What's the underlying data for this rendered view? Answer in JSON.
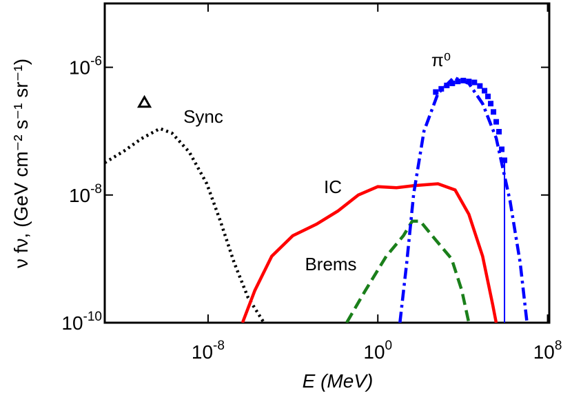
{
  "chart_data": {
    "type": "line",
    "x_label": "E (MeV)",
    "y_label": "ν fν, (GeV cm⁻² s⁻¹ sr⁻¹)",
    "xscale": "log",
    "yscale": "log",
    "xlim": [
      1.35e-13,
      120000000.0
    ],
    "ylim": [
      1e-10,
      1e-05
    ],
    "xticks": [
      {
        "value": 1e-08,
        "label": "10^-8"
      },
      {
        "value": 1,
        "label": "10^0"
      },
      {
        "value": 100000000.0,
        "label": "10^8"
      }
    ],
    "yticks": [
      {
        "value": 1e-10,
        "label": "10^-10"
      },
      {
        "value": 1e-08,
        "label": "10^-8"
      },
      {
        "value": 1e-06,
        "label": "10^-6"
      }
    ],
    "series": [
      {
        "name": "Sync",
        "color": "#000000",
        "style": "dotted",
        "x": [
          1.35e-13,
          1.1e-12,
          7.1e-12,
          5.4e-11,
          2e-10,
          1.3e-09,
          8.7e-09,
          3.8e-08,
          1.7e-07,
          7.6e-07,
          4.3e-06
        ],
        "values": [
          3.2e-08,
          4.9e-08,
          7.6e-08,
          1.1e-07,
          9.3e-08,
          4.7e-08,
          1.5e-08,
          3.9e-09,
          8.7e-10,
          2.5e-10,
          1e-10
        ]
      },
      {
        "name": "IC",
        "color": "#ff0000",
        "style": "solid",
        "x": [
          4.2e-07,
          1.6e-06,
          1e-05,
          9.8e-05,
          0.0013,
          0.013,
          0.12,
          1,
          7.6,
          49,
          680,
          4400,
          19500,
          87000,
          260000.0,
          380000.0
        ],
        "values": [
          1e-10,
          3.2e-10,
          1.1e-09,
          2.3e-09,
          3.5e-09,
          5.6e-09,
          1e-08,
          1.35e-08,
          1.3e-08,
          1.4e-08,
          1.5e-08,
          1.2e-08,
          5e-09,
          1.1e-09,
          1.9e-10,
          1e-10
        ]
      },
      {
        "name": "Brems",
        "color": "#1a7f1a",
        "style": "dashed",
        "x": [
          0.034,
          0.26,
          2.5,
          16,
          42,
          100,
          460,
          3000,
          9100,
          19500
        ],
        "values": [
          1e-10,
          3.2e-10,
          1.1e-09,
          2.3e-09,
          3.9e-09,
          3.9e-09,
          2.1e-09,
          1e-09,
          3.2e-10,
          1e-10
        ]
      },
      {
        "name": "π⁰",
        "color": "#0000ff",
        "style": "dashdot",
        "x": [
          11,
          23,
          49,
          150,
          680,
          3800,
          19500,
          87000,
          380000.0,
          1700000.0,
          5100000.0,
          10700000.0
        ],
        "values": [
          1e-10,
          8.7e-10,
          1.05e-08,
          1e-07,
          3.9e-07,
          6.9e-07,
          5.6e-07,
          2.7e-07,
          7.8e-08,
          8.1e-09,
          8.7e-10,
          1e-10
        ]
      }
    ],
    "data_points": {
      "color": "#0000ff",
      "marker": "square",
      "x": [
        537,
        977,
        1780,
        3240,
        5890,
        10700,
        19500,
        35500,
        64600,
        107000,
        155000,
        209000,
        282000,
        380000,
        513000,
        692000,
        933000
      ],
      "values": [
        4.1e-07,
        4.6e-07,
        5.2e-07,
        5.6e-07,
        6e-07,
        6.2e-07,
        6e-07,
        5.8e-07,
        5.1e-07,
        4.3e-07,
        3.5e-07,
        2.7e-07,
        2e-07,
        1.4e-07,
        9.8e-08,
        5.2e-08,
        3.5e-08
      ]
    },
    "upper_limit": {
      "color": "#000000",
      "marker": "triangle",
      "x": [
        1e-11
      ],
      "values": [
        2.8e-07
      ]
    }
  }
}
